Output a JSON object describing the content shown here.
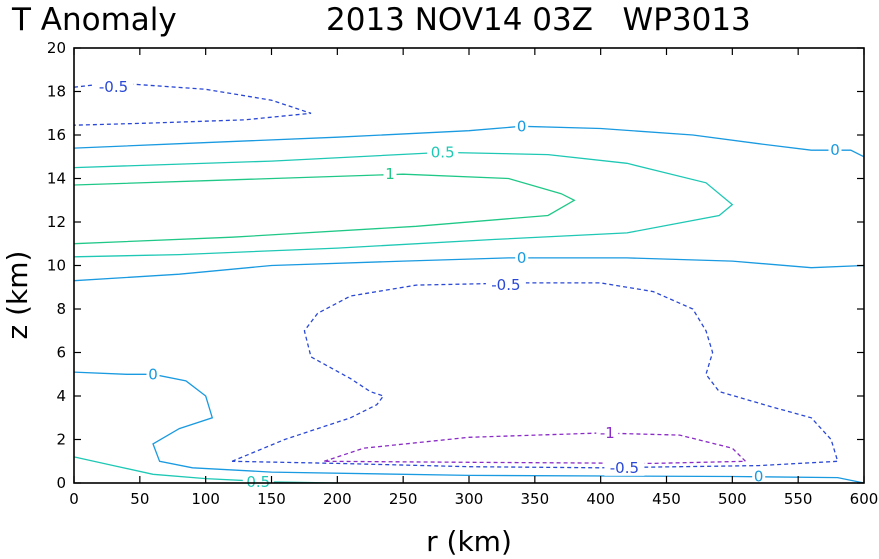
{
  "chart_data": {
    "type": "contour",
    "title_left": "T Anomaly",
    "title_right": "2013 NOV14 03Z   WP3013",
    "xlabel": "r (km)",
    "ylabel": "z (km)",
    "xlim": [
      0,
      600
    ],
    "ylim": [
      0,
      20
    ],
    "xticks": [
      0,
      50,
      100,
      150,
      200,
      250,
      300,
      350,
      400,
      450,
      500,
      550,
      600
    ],
    "yticks": [
      0,
      2,
      4,
      6,
      8,
      10,
      12,
      14,
      16,
      18,
      20
    ],
    "grid": false,
    "levels": [
      {
        "value": "-1",
        "color": "#8a2bc6",
        "style": "dashed"
      },
      {
        "value": "-0.5",
        "color": "#2a48d6",
        "style": "dashed"
      },
      {
        "value": "0",
        "color": "#1a9ae0",
        "style": "solid"
      },
      {
        "value": "0.5",
        "color": "#1ec8b4",
        "style": "solid"
      },
      {
        "value": "1",
        "color": "#20c888",
        "style": "solid"
      }
    ],
    "contours": [
      {
        "level": "-0.5",
        "points": [
          [
            0,
            18.2
          ],
          [
            30,
            18.4
          ],
          [
            100,
            18.1
          ],
          [
            150,
            17.6
          ],
          [
            180,
            17.0
          ],
          [
            130,
            16.7
          ],
          [
            60,
            16.55
          ],
          [
            0,
            16.45
          ]
        ]
      },
      {
        "level": "0",
        "points": [
          [
            0,
            15.4
          ],
          [
            80,
            15.6
          ],
          [
            200,
            15.9
          ],
          [
            300,
            16.2
          ],
          [
            340,
            16.4
          ],
          [
            400,
            16.3
          ],
          [
            470,
            16.0
          ],
          [
            520,
            15.6
          ],
          [
            560,
            15.3
          ],
          [
            590,
            15.3
          ],
          [
            600,
            15.0
          ]
        ]
      },
      {
        "level": "0.5",
        "points": [
          [
            0,
            14.5
          ],
          [
            150,
            14.8
          ],
          [
            280,
            15.2
          ],
          [
            360,
            15.1
          ],
          [
            420,
            14.7
          ],
          [
            480,
            13.8
          ],
          [
            500,
            12.8
          ],
          [
            490,
            12.3
          ],
          [
            420,
            11.5
          ],
          [
            320,
            11.2
          ],
          [
            200,
            10.8
          ],
          [
            80,
            10.5
          ],
          [
            0,
            10.4
          ]
        ]
      },
      {
        "level": "1",
        "points": [
          [
            0,
            13.7
          ],
          [
            100,
            13.9
          ],
          [
            250,
            14.2
          ],
          [
            330,
            14.0
          ],
          [
            370,
            13.3
          ],
          [
            380,
            13.0
          ],
          [
            360,
            12.3
          ],
          [
            260,
            11.8
          ],
          [
            120,
            11.3
          ],
          [
            0,
            11.0
          ]
        ]
      },
      {
        "level": "0",
        "points": [
          [
            0,
            9.3
          ],
          [
            80,
            9.6
          ],
          [
            150,
            10.0
          ],
          [
            250,
            10.2
          ],
          [
            330,
            10.35
          ],
          [
            420,
            10.35
          ],
          [
            500,
            10.2
          ],
          [
            560,
            9.9
          ],
          [
            600,
            10.0
          ]
        ]
      },
      {
        "level": "-0.5",
        "points": [
          [
            120,
            1.0
          ],
          [
            160,
            2.0
          ],
          [
            210,
            3.0
          ],
          [
            230,
            3.6
          ],
          [
            235,
            4.0
          ],
          [
            225,
            4.2
          ],
          [
            210,
            4.8
          ],
          [
            180,
            5.8
          ],
          [
            175,
            7.0
          ],
          [
            185,
            7.8
          ],
          [
            210,
            8.6
          ],
          [
            260,
            9.1
          ],
          [
            340,
            9.2
          ],
          [
            400,
            9.2
          ],
          [
            440,
            8.8
          ],
          [
            470,
            8.0
          ],
          [
            480,
            7.0
          ],
          [
            485,
            6.0
          ],
          [
            480,
            5.0
          ],
          [
            490,
            4.2
          ],
          [
            530,
            3.5
          ],
          [
            560,
            3.0
          ],
          [
            575,
            2.0
          ],
          [
            580,
            1.0
          ],
          [
            520,
            0.8
          ],
          [
            400,
            0.7
          ],
          [
            300,
            0.75
          ],
          [
            200,
            0.9
          ],
          [
            120,
            1.0
          ]
        ]
      },
      {
        "level": "-1",
        "points": [
          [
            190,
            1.0
          ],
          [
            220,
            1.6
          ],
          [
            300,
            2.1
          ],
          [
            400,
            2.3
          ],
          [
            460,
            2.2
          ],
          [
            500,
            1.6
          ],
          [
            510,
            1.0
          ],
          [
            440,
            0.9
          ],
          [
            300,
            0.95
          ],
          [
            190,
            1.0
          ]
        ]
      },
      {
        "level": "0",
        "points": [
          [
            0,
            5.1
          ],
          [
            40,
            5.0
          ],
          [
            60,
            5.0
          ],
          [
            85,
            4.7
          ],
          [
            100,
            4.0
          ],
          [
            105,
            3.0
          ],
          [
            80,
            2.5
          ],
          [
            60,
            1.8
          ],
          [
            65,
            1.0
          ],
          [
            90,
            0.7
          ],
          [
            150,
            0.5
          ],
          [
            300,
            0.35
          ],
          [
            500,
            0.3
          ],
          [
            580,
            0.25
          ],
          [
            600,
            0.0
          ]
        ]
      },
      {
        "level": "0.5",
        "points": [
          [
            0,
            1.2
          ],
          [
            30,
            0.8
          ],
          [
            60,
            0.4
          ],
          [
            100,
            0.2
          ],
          [
            150,
            0.05
          ],
          [
            200,
            0.0
          ]
        ]
      }
    ],
    "contour_labels": [
      {
        "text": "-0.5",
        "x": 30,
        "y": 18.2,
        "level": "-0.5"
      },
      {
        "text": "0",
        "x": 340,
        "y": 16.4,
        "level": "0"
      },
      {
        "text": "0",
        "x": 578,
        "y": 15.3,
        "level": "0"
      },
      {
        "text": "0.5",
        "x": 280,
        "y": 15.2,
        "level": "0.5"
      },
      {
        "text": "1",
        "x": 240,
        "y": 14.2,
        "level": "1"
      },
      {
        "text": "0",
        "x": 340,
        "y": 10.35,
        "level": "0"
      },
      {
        "text": "-0.5",
        "x": 328,
        "y": 9.1,
        "level": "-0.5"
      },
      {
        "text": "0",
        "x": 60,
        "y": 5.0,
        "level": "0"
      },
      {
        "text": "-1",
        "x": 405,
        "y": 2.3,
        "level": "-1"
      },
      {
        "text": "-0.5",
        "x": 418,
        "y": 0.7,
        "level": "-0.5"
      },
      {
        "text": "0",
        "x": 520,
        "y": 0.3,
        "level": "0"
      },
      {
        "text": "0.5",
        "x": 140,
        "y": 0.05,
        "level": "0.5"
      }
    ]
  }
}
